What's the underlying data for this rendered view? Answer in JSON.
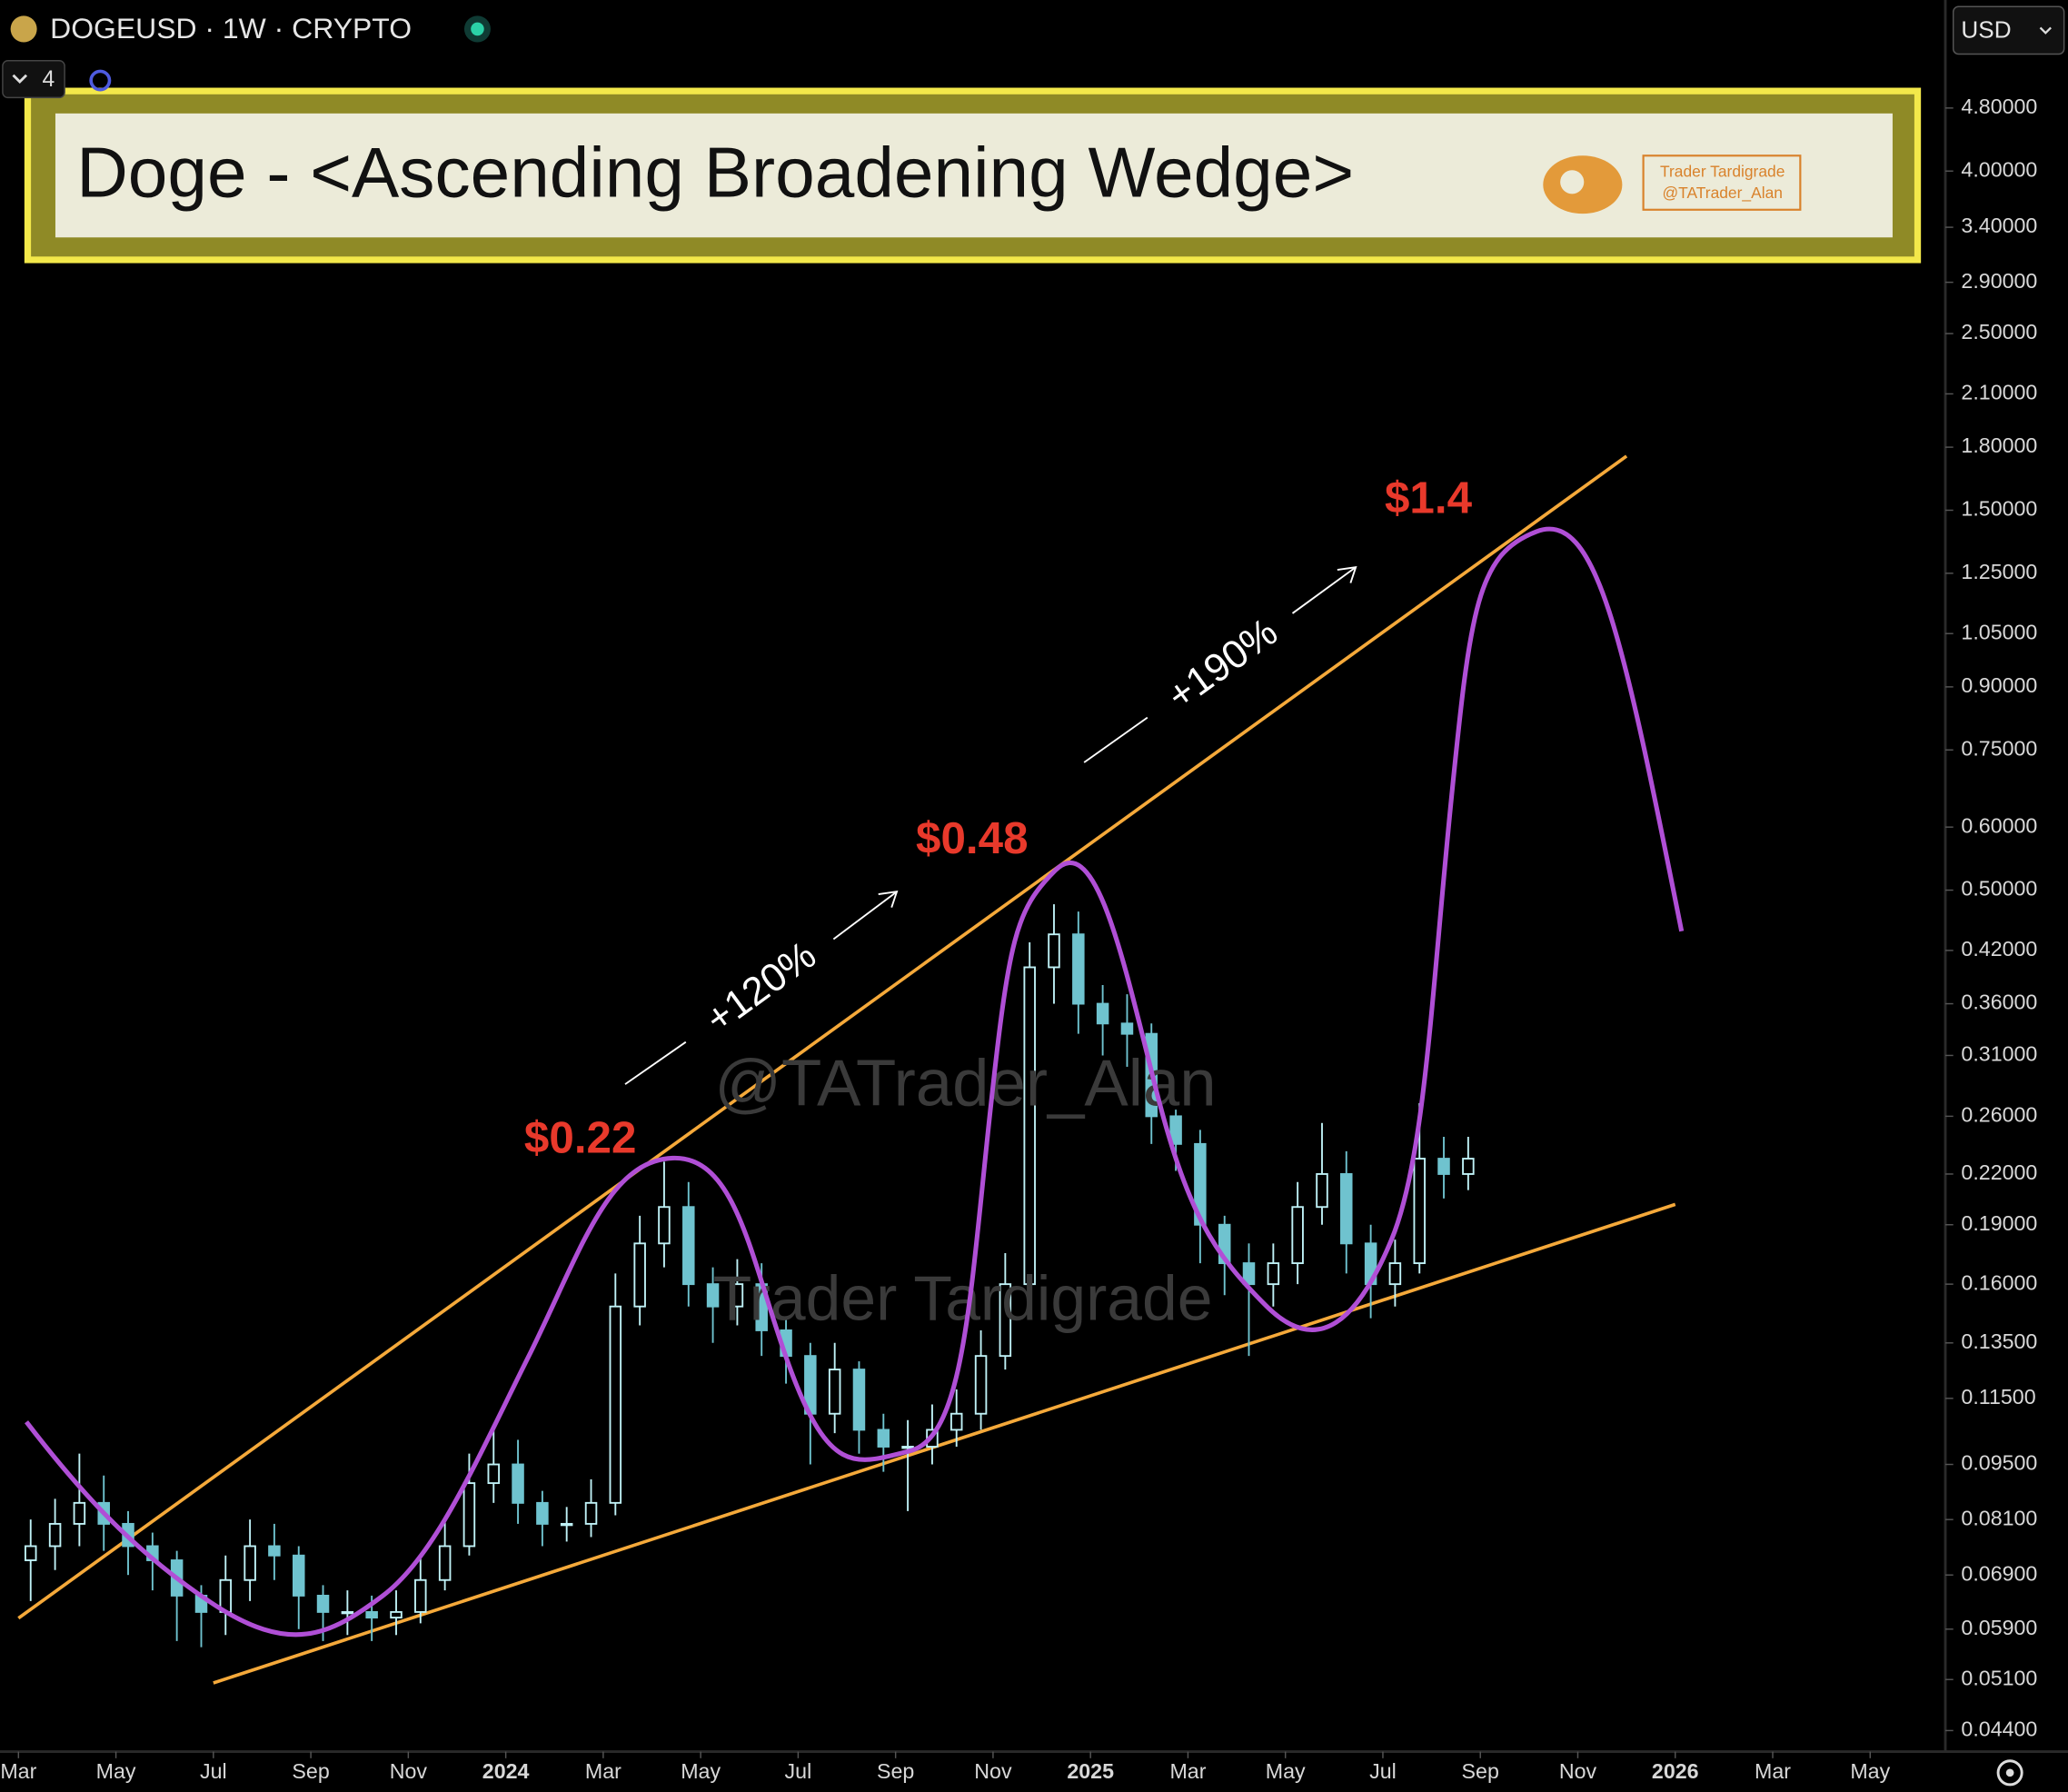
{
  "toolbar": {
    "symbol": "DOGEUSD · 1W · CRYPTO",
    "indicator_count": 4,
    "currency": "USD"
  },
  "chart_data": {
    "type": "candlestick",
    "title": "Doge - <Ascending Broadening Wedge>",
    "brand": {
      "name": "Trader Tardigrade",
      "handle": "@TATrader_Alan"
    },
    "watermarks": [
      "@TATrader_Alan",
      "Trader Tardigrade"
    ],
    "annotations": [
      "$0.22",
      "$0.48",
      "$1.4",
      "+120%",
      "+190%"
    ],
    "x": [
      "2023-03",
      "2023-03",
      "2023-04",
      "2023-04",
      "2023-05",
      "2023-05",
      "2023-06",
      "2023-06",
      "2023-07",
      "2023-07",
      "2023-08",
      "2023-08",
      "2023-09",
      "2023-09",
      "2023-10",
      "2023-10",
      "2023-11",
      "2023-11",
      "2023-12",
      "2023-12",
      "2024-01",
      "2024-01",
      "2024-02",
      "2024-02",
      "2024-03",
      "2024-03",
      "2024-04",
      "2024-04",
      "2024-05",
      "2024-05",
      "2024-06",
      "2024-06",
      "2024-07",
      "2024-07",
      "2024-08",
      "2024-08",
      "2024-09",
      "2024-09",
      "2024-10",
      "2024-10",
      "2024-11",
      "2024-11",
      "2024-12",
      "2024-12",
      "2025-01",
      "2025-01",
      "2025-02",
      "2025-02",
      "2025-03",
      "2025-03",
      "2025-04",
      "2025-04",
      "2025-05",
      "2025-05",
      "2025-06",
      "2025-06",
      "2025-07",
      "2025-07",
      "2025-08",
      "2025-08"
    ],
    "open": [
      0.072,
      0.075,
      0.08,
      0.085,
      0.08,
      0.075,
      0.072,
      0.065,
      0.062,
      0.068,
      0.075,
      0.073,
      0.065,
      0.062,
      0.062,
      0.061,
      0.062,
      0.068,
      0.075,
      0.09,
      0.095,
      0.085,
      0.08,
      0.08,
      0.085,
      0.15,
      0.18,
      0.2,
      0.16,
      0.15,
      0.16,
      0.14,
      0.13,
      0.11,
      0.125,
      0.105,
      0.1,
      0.1,
      0.105,
      0.11,
      0.13,
      0.16,
      0.4,
      0.44,
      0.36,
      0.34,
      0.33,
      0.26,
      0.24,
      0.19,
      0.17,
      0.16,
      0.17,
      0.2,
      0.22,
      0.18,
      0.16,
      0.17,
      0.23,
      0.22
    ],
    "high": [
      0.081,
      0.086,
      0.098,
      0.092,
      0.083,
      0.078,
      0.074,
      0.067,
      0.073,
      0.081,
      0.08,
      0.075,
      0.067,
      0.066,
      0.065,
      0.066,
      0.073,
      0.081,
      0.098,
      0.105,
      0.102,
      0.088,
      0.084,
      0.091,
      0.165,
      0.195,
      0.228,
      0.215,
      0.168,
      0.172,
      0.17,
      0.145,
      0.135,
      0.135,
      0.128,
      0.11,
      0.108,
      0.113,
      0.118,
      0.14,
      0.175,
      0.43,
      0.48,
      0.47,
      0.38,
      0.37,
      0.34,
      0.265,
      0.25,
      0.195,
      0.18,
      0.18,
      0.215,
      0.255,
      0.235,
      0.19,
      0.182,
      0.27,
      0.245,
      0.245
    ],
    "low": [
      0.064,
      0.07,
      0.075,
      0.074,
      0.069,
      0.066,
      0.057,
      0.056,
      0.058,
      0.064,
      0.068,
      0.059,
      0.057,
      0.058,
      0.057,
      0.058,
      0.06,
      0.066,
      0.073,
      0.085,
      0.08,
      0.075,
      0.076,
      0.077,
      0.082,
      0.142,
      0.168,
      0.15,
      0.135,
      0.142,
      0.13,
      0.12,
      0.095,
      0.104,
      0.098,
      0.093,
      0.083,
      0.095,
      0.1,
      0.105,
      0.125,
      0.155,
      0.36,
      0.33,
      0.31,
      0.3,
      0.24,
      0.222,
      0.17,
      0.155,
      0.13,
      0.15,
      0.16,
      0.19,
      0.165,
      0.145,
      0.15,
      0.165,
      0.205,
      0.21
    ],
    "close": [
      0.075,
      0.08,
      0.085,
      0.08,
      0.075,
      0.072,
      0.065,
      0.062,
      0.068,
      0.075,
      0.073,
      0.065,
      0.062,
      0.062,
      0.061,
      0.062,
      0.068,
      0.075,
      0.09,
      0.095,
      0.085,
      0.08,
      0.08,
      0.085,
      0.15,
      0.18,
      0.2,
      0.16,
      0.15,
      0.16,
      0.14,
      0.13,
      0.11,
      0.125,
      0.105,
      0.1,
      0.1,
      0.105,
      0.11,
      0.13,
      0.16,
      0.4,
      0.44,
      0.36,
      0.34,
      0.33,
      0.26,
      0.24,
      0.19,
      0.17,
      0.16,
      0.17,
      0.2,
      0.22,
      0.18,
      0.16,
      0.17,
      0.23,
      0.22,
      0.23
    ],
    "up_color": "#bff1f6",
    "down_color": "#6fc3cf",
    "log_scale": true,
    "ylim": [
      0.0414,
      6.56
    ],
    "yticks": [
      {
        "value": 4.8,
        "label": "4.80000"
      },
      {
        "value": 4,
        "label": "4.00000"
      },
      {
        "value": 3.4,
        "label": "3.40000"
      },
      {
        "value": 2.9,
        "label": "2.90000"
      },
      {
        "value": 2.5,
        "label": "2.50000"
      },
      {
        "value": 2.1,
        "label": "2.10000"
      },
      {
        "value": 1.8,
        "label": "1.80000"
      },
      {
        "value": 1.5,
        "label": "1.50000"
      },
      {
        "value": 1.25,
        "label": "1.25000"
      },
      {
        "value": 1.05,
        "label": "1.05000"
      },
      {
        "value": 0.9,
        "label": "0.90000"
      },
      {
        "value": 0.75,
        "label": "0.75000"
      },
      {
        "value": 0.6,
        "label": "0.60000"
      },
      {
        "value": 0.5,
        "label": "0.50000"
      },
      {
        "value": 0.42,
        "label": "0.42000"
      },
      {
        "value": 0.36,
        "label": "0.36000"
      },
      {
        "value": 0.31,
        "label": "0.31000"
      },
      {
        "value": 0.26,
        "label": "0.26000"
      },
      {
        "value": 0.22,
        "label": "0.22000"
      },
      {
        "value": 0.19,
        "label": "0.19000"
      },
      {
        "value": 0.16,
        "label": "0.16000"
      },
      {
        "value": 0.135,
        "label": "0.13500"
      },
      {
        "value": 0.115,
        "label": "0.11500"
      },
      {
        "value": 0.095,
        "label": "0.09500"
      },
      {
        "value": 0.081,
        "label": "0.08100"
      },
      {
        "value": 0.069,
        "label": "0.06900"
      },
      {
        "value": 0.059,
        "label": "0.05900"
      },
      {
        "value": 0.051,
        "label": "0.05100"
      },
      {
        "value": 0.044,
        "label": "0.04400"
      }
    ],
    "xlim": [
      "2023-03",
      "2026-05"
    ],
    "xticks": [
      {
        "value": "2023-03",
        "label": "Mar"
      },
      {
        "value": "2023-05",
        "label": "May"
      },
      {
        "value": "2023-07",
        "label": "Jul"
      },
      {
        "value": "2023-09",
        "label": "Sep"
      },
      {
        "value": "2023-11",
        "label": "Nov"
      },
      {
        "value": "2024-01",
        "label": "2024"
      },
      {
        "value": "2024-03",
        "label": "Mar"
      },
      {
        "value": "2024-05",
        "label": "May"
      },
      {
        "value": "2024-07",
        "label": "Jul"
      },
      {
        "value": "2024-09",
        "label": "Sep"
      },
      {
        "value": "2024-11",
        "label": "Nov"
      },
      {
        "value": "2025-01",
        "label": "2025"
      },
      {
        "value": "2025-03",
        "label": "Mar"
      },
      {
        "value": "2025-05",
        "label": "May"
      },
      {
        "value": "2025-07",
        "label": "Jul"
      },
      {
        "value": "2025-09",
        "label": "Sep"
      },
      {
        "value": "2025-11",
        "label": "Nov"
      },
      {
        "value": "2026-01",
        "label": "2026"
      },
      {
        "value": "2026-03",
        "label": "Mar"
      },
      {
        "value": "2026-05",
        "label": "May"
      }
    ],
    "trendline_color": "#f5a93a",
    "projection_color": "#b04fd6",
    "trendlines": [
      {
        "x": [
          "2023-03",
          "2025-12"
        ],
        "values": [
          0.0609,
          1.754
        ]
      },
      {
        "x": [
          "2023-07",
          "2026-01"
        ],
        "values": [
          0.0505,
          0.2015
        ]
      }
    ]
  }
}
